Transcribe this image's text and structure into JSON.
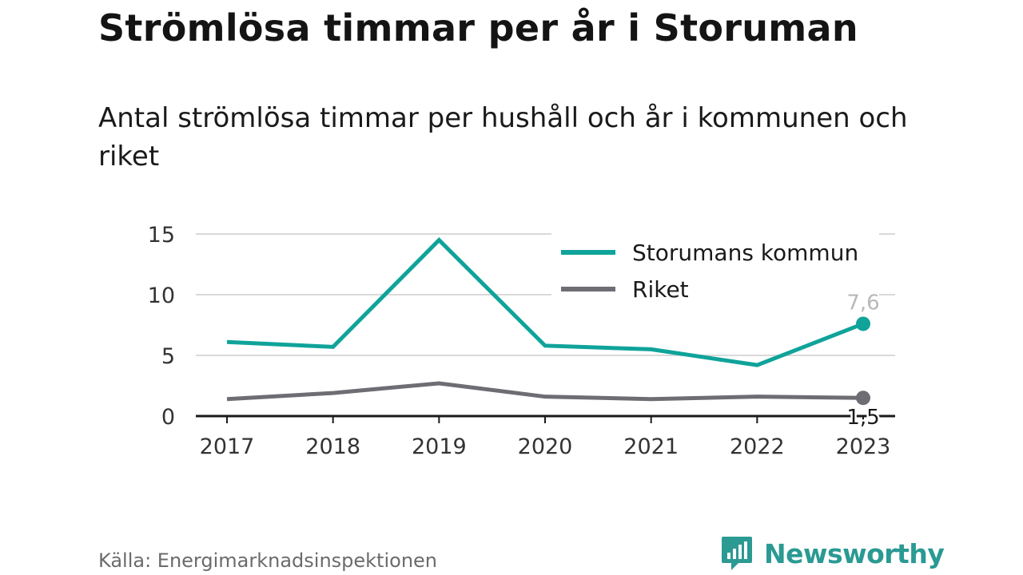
{
  "header": {
    "title": "Strömlösa timmar per år i Storuman",
    "subtitle": "Antal strömlösa timmar per hushåll och år i kommunen och riket"
  },
  "footer": {
    "source": "Källa: Energimarknadsinspektionen",
    "brand": "Newsworthy",
    "brand_icon": "newsworthy-logo-icon",
    "brand_color": "#2a9a93"
  },
  "chart_data": {
    "type": "line",
    "x": [
      "2017",
      "2018",
      "2019",
      "2020",
      "2021",
      "2022",
      "2023"
    ],
    "ylim": [
      0,
      15
    ],
    "yticks": [
      0,
      5,
      10,
      15
    ],
    "grid": true,
    "legend_position": "top-right",
    "series": [
      {
        "name": "Storumans kommun",
        "color": "#0fa39a",
        "values": [
          6.1,
          5.7,
          14.5,
          5.8,
          5.5,
          4.2,
          7.6
        ],
        "end_label": "7,6"
      },
      {
        "name": "Riket",
        "color": "#6e6d74",
        "values": [
          1.4,
          1.9,
          2.7,
          1.6,
          1.4,
          1.6,
          1.5
        ],
        "end_label": "1,5"
      }
    ]
  }
}
